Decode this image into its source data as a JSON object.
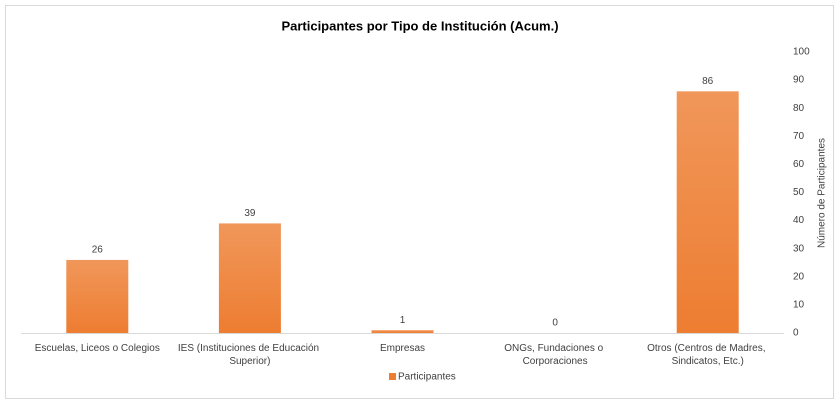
{
  "chart_data": {
    "type": "bar",
    "title": "Participantes por Tipo de Institución (Acum.)",
    "categories": [
      "Escuelas, Liceos o Colegios",
      "IES (Instituciones de Educación Superior)",
      "Empresas",
      "ONGs, Fundaciones o Corporaciones",
      "Otros (Centros de Madres, Sindicatos, Etc.)"
    ],
    "series": [
      {
        "name": "Participantes",
        "color": "#ed7d31",
        "values": [
          26,
          39,
          1,
          0,
          86
        ]
      }
    ],
    "y_label": "Número de Participantes",
    "ylim": [
      0,
      100
    ],
    "yticks": [
      0,
      10,
      20,
      30,
      40,
      50,
      60,
      70,
      80,
      90,
      100
    ],
    "y_axis_side": "right",
    "grid": false,
    "legend": "bottom",
    "data_labels": true
  }
}
